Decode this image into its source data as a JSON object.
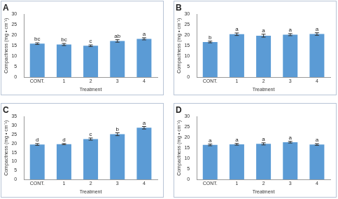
{
  "chart_data": [
    {
      "type": "bar",
      "title": "A",
      "x_label": "Treatment",
      "y_label": "Compactness (mg • cm⁻³)",
      "categories": [
        "CONT.",
        "1",
        "2",
        "3",
        "4"
      ],
      "values": [
        16.0,
        15.6,
        15.0,
        17.3,
        18.3
      ],
      "errors": [
        0.4,
        0.5,
        0.4,
        0.6,
        0.5
      ],
      "annotations": [
        "bc",
        "bc",
        "c",
        "ab",
        "a"
      ],
      "color": "#5b9bd5",
      "ylim": [
        0,
        30
      ],
      "yticks": [
        0,
        5,
        10,
        15,
        20,
        25,
        30
      ],
      "grid": false
    },
    {
      "type": "bar",
      "title": "B",
      "x_label": "Treatment",
      "y_label": "Compactness (mg • cm⁻³)",
      "categories": [
        "CONT.",
        "1",
        "2",
        "3",
        "4"
      ],
      "values": [
        16.8,
        20.5,
        19.8,
        20.3,
        20.6
      ],
      "errors": [
        0.4,
        0.6,
        0.7,
        0.5,
        0.6
      ],
      "annotations": [
        "b",
        "a",
        "a",
        "a",
        "a"
      ],
      "color": "#5b9bd5",
      "ylim": [
        0,
        30
      ],
      "yticks": [
        0,
        5,
        10,
        15,
        20,
        25,
        30
      ],
      "grid": false
    },
    {
      "type": "bar",
      "title": "C",
      "x_label": "Treatment",
      "y_label": "Compactness (mg • cm⁻³)",
      "categories": [
        "CONT.",
        "1",
        "2",
        "3",
        "4"
      ],
      "values": [
        19.5,
        19.7,
        22.5,
        25.2,
        28.8
      ],
      "errors": [
        0.5,
        0.3,
        0.6,
        0.8,
        0.7
      ],
      "annotations": [
        "d",
        "d",
        "c",
        "b",
        "a"
      ],
      "color": "#5b9bd5",
      "ylim": [
        0,
        35
      ],
      "yticks": [
        0,
        5,
        10,
        15,
        20,
        25,
        30,
        35
      ],
      "grid": false
    },
    {
      "type": "bar",
      "title": "D",
      "x_label": "Treatment",
      "y_label": "Compactness (mg • cm⁻³)",
      "categories": [
        "CONT.",
        "1",
        "2",
        "3",
        "4"
      ],
      "values": [
        16.5,
        16.8,
        17.0,
        17.8,
        16.7
      ],
      "errors": [
        0.4,
        0.4,
        0.5,
        0.4,
        0.4
      ],
      "annotations": [
        "a",
        "a",
        "a",
        "a",
        "a"
      ],
      "color": "#5b9bd5",
      "ylim": [
        0,
        30
      ],
      "yticks": [
        0,
        5,
        10,
        15,
        20,
        25,
        30
      ],
      "grid": false
    }
  ]
}
